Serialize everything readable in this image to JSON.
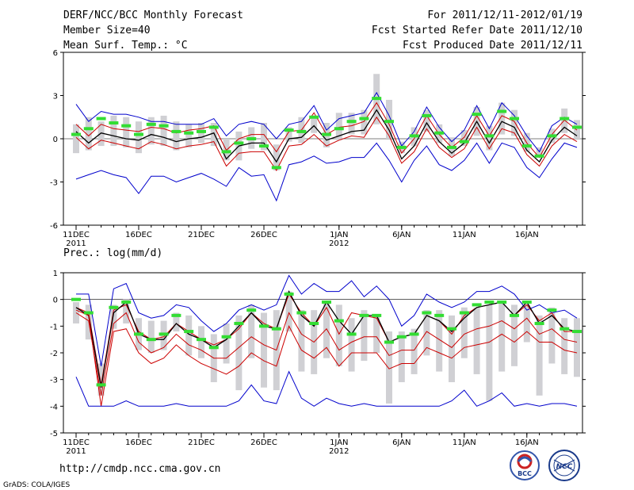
{
  "header": {
    "title": "DERF/NCC/BCC Monthly Forecast",
    "member_size": "Member Size=40",
    "variable": "Mean Surf. Temp.: °C",
    "period": "For 2011/12/11-2012/01/19",
    "started": "Fcst Started Refer Date 2011/12/10",
    "produced": "Fcst Produced Date 2011/12/11"
  },
  "footer": {
    "url": "http://cmdp.ncc.cma.gov.cn",
    "grads": "GrADS: COLA/IGES",
    "logo_bcc": "BCC",
    "logo_ncc": "NCC"
  },
  "colors": {
    "max_min": "#0000cc",
    "pctl": "#cc0000",
    "mean": "#000000",
    "obs": "#33dd33",
    "bars": "#d0d0d4"
  },
  "chart_data": [
    {
      "type": "line",
      "title": "Mean Surf. Temp.: °C",
      "xlabel": "",
      "ylabel": "°C",
      "ylim": [
        -6,
        6
      ],
      "yticks": [
        "6",
        "3",
        "0",
        "-3",
        "-6"
      ],
      "ytick_values": [
        6,
        3,
        0,
        -3,
        -6
      ],
      "xtick_labels": [
        "11DEC",
        "16DEC",
        "21DEC",
        "26DEC",
        "1JAN",
        "6JAN",
        "11JAN",
        "16JAN"
      ],
      "xtick_days": [
        1,
        6,
        11,
        16,
        22,
        27,
        32,
        37
      ],
      "xyear_labels": [
        "2011",
        "2012"
      ],
      "xyear_days": [
        1,
        22
      ],
      "series": [
        {
          "name": "max",
          "color": "#0000cc",
          "values": [
            2.4,
            1.2,
            1.9,
            1.7,
            1.7,
            1.5,
            1.2,
            1.2,
            1.0,
            1.0,
            1.0,
            1.4,
            0.2,
            1.0,
            1.2,
            1.0,
            0.0,
            1.0,
            1.2,
            2.3,
            0.6,
            1.4,
            1.6,
            1.8,
            3.2,
            1.6,
            -0.5,
            0.5,
            2.2,
            0.8,
            -0.2,
            0.6,
            2.3,
            0.7,
            2.5,
            1.6,
            0.2,
            -0.9,
            0.9,
            1.5,
            1.0
          ]
        },
        {
          "name": "p90",
          "color": "#cc0000",
          "values": [
            1.0,
            0.2,
            1.0,
            0.7,
            0.6,
            0.5,
            0.8,
            0.7,
            0.4,
            0.6,
            0.7,
            0.9,
            -0.8,
            0.0,
            0.3,
            0.3,
            -0.9,
            0.5,
            0.6,
            1.8,
            0.3,
            0.8,
            0.9,
            1.2,
            2.5,
            1.0,
            -1.0,
            0.0,
            1.6,
            0.3,
            -0.6,
            0.1,
            1.6,
            0.2,
            1.6,
            1.2,
            -0.3,
            -1.3,
            0.3,
            1.3,
            0.6
          ]
        },
        {
          "name": "mean",
          "color": "#000000",
          "values": [
            0.5,
            -0.3,
            0.4,
            0.2,
            0.0,
            -0.1,
            0.3,
            0.1,
            -0.2,
            0.0,
            0.1,
            0.4,
            -1.4,
            -0.5,
            -0.3,
            -0.3,
            -1.6,
            0.0,
            0.1,
            0.9,
            -0.1,
            0.2,
            0.5,
            0.6,
            2.0,
            0.6,
            -1.4,
            -0.5,
            1.1,
            -0.2,
            -1.0,
            -0.3,
            1.2,
            -0.3,
            1.2,
            0.8,
            -0.8,
            -1.6,
            -0.1,
            0.8,
            0.2
          ]
        },
        {
          "name": "p10",
          "color": "#cc0000",
          "values": [
            0.1,
            -0.7,
            -0.1,
            -0.3,
            -0.5,
            -0.7,
            -0.2,
            -0.4,
            -0.7,
            -0.5,
            -0.4,
            -0.2,
            -1.9,
            -1.0,
            -0.9,
            -0.9,
            -2.2,
            -0.5,
            -0.4,
            0.3,
            -0.5,
            -0.1,
            0.2,
            0.1,
            1.5,
            0.2,
            -1.7,
            -0.9,
            0.7,
            -0.6,
            -1.3,
            -0.7,
            0.8,
            -0.7,
            0.7,
            0.4,
            -1.1,
            -1.9,
            -0.5,
            0.3,
            -0.2
          ]
        },
        {
          "name": "min",
          "color": "#0000cc",
          "values": [
            -2.8,
            -2.5,
            -2.2,
            -2.5,
            -2.7,
            -3.8,
            -2.6,
            -2.6,
            -3.0,
            -2.7,
            -2.4,
            -2.8,
            -3.3,
            -2.0,
            -2.6,
            -2.5,
            -4.3,
            -1.8,
            -1.6,
            -1.2,
            -1.7,
            -1.6,
            -1.3,
            -1.3,
            -0.3,
            -1.5,
            -3.0,
            -1.5,
            -0.5,
            -1.8,
            -2.2,
            -1.5,
            -0.3,
            -1.7,
            -0.3,
            -0.6,
            -2.0,
            -2.7,
            -1.4,
            -0.3,
            -0.6
          ]
        }
      ],
      "observed": [
        0.3,
        0.7,
        1.4,
        1.1,
        0.9,
        0.3,
        1.0,
        0.9,
        0.5,
        0.4,
        0.5,
        0.8,
        -0.9,
        -0.3,
        0.0,
        -0.5,
        -2.0,
        0.6,
        0.5,
        1.5,
        0.3,
        0.7,
        1.2,
        1.4,
        2.8,
        1.2,
        -0.6,
        0.2,
        1.6,
        0.4,
        -0.6,
        -0.2,
        1.7,
        0.2,
        1.9,
        1.4,
        -0.5,
        -1.2,
        0.2,
        1.4,
        0.8
      ],
      "box_top": [
        1.0,
        1.5,
        1.2,
        1.6,
        1.5,
        1.2,
        1.5,
        1.6,
        1.2,
        1.0,
        1.1,
        1.1,
        0.0,
        0.5,
        0.8,
        1.1,
        -0.4,
        0.8,
        1.5,
        1.5,
        1.1,
        1.8,
        1.8,
        2.0,
        4.5,
        2.7,
        -0.2,
        0.8,
        2.0,
        1.0,
        0.1,
        0.6,
        2.2,
        0.9,
        2.5,
        2.0,
        0.4,
        -0.6,
        0.7,
        2.1,
        1.3
      ],
      "box_bottom": [
        -1.0,
        -0.8,
        -0.5,
        -0.5,
        -0.6,
        -1.0,
        -0.4,
        -0.5,
        -0.8,
        -0.6,
        -0.3,
        -0.5,
        -1.5,
        -1.5,
        -0.7,
        -0.8,
        -2.2,
        -0.2,
        -0.3,
        0.4,
        -0.6,
        -0.1,
        0.3,
        0.3,
        1.0,
        0.0,
        -1.0,
        -0.5,
        0.5,
        -0.3,
        -1.2,
        -0.5,
        0.2,
        -0.8,
        0.3,
        0.2,
        -0.9,
        -1.3,
        -0.3,
        0.4,
        0.0
      ]
    },
    {
      "type": "line",
      "title": "Prec.: log(mm/d)",
      "xlabel": "",
      "ylabel": "log(mm/d)",
      "ylim": [
        -5,
        1
      ],
      "yticks": [
        "1",
        "0",
        "-1",
        "-2",
        "-3",
        "-4",
        "-5"
      ],
      "ytick_values": [
        1,
        0,
        -1,
        -2,
        -3,
        -4,
        -5
      ],
      "xtick_labels": [
        "11DEC",
        "16DEC",
        "21DEC",
        "26DEC",
        "1JAN",
        "6JAN",
        "11JAN",
        "16JAN"
      ],
      "xtick_days": [
        1,
        6,
        11,
        16,
        22,
        27,
        32,
        37
      ],
      "xyear_labels": [
        "2011",
        "2012"
      ],
      "xyear_days": [
        1,
        22
      ],
      "series": [
        {
          "name": "max",
          "color": "#0000cc",
          "values": [
            0.2,
            0.2,
            -2.5,
            0.4,
            0.6,
            -0.5,
            -0.7,
            -0.6,
            -0.2,
            -0.3,
            -0.8,
            -1.2,
            -0.9,
            -0.4,
            -0.2,
            -0.4,
            -0.2,
            0.9,
            0.2,
            0.6,
            0.3,
            0.3,
            0.7,
            0.1,
            0.5,
            0.0,
            -1.0,
            -0.6,
            0.2,
            -0.1,
            -0.3,
            -0.1,
            0.3,
            0.3,
            0.5,
            0.2,
            -0.4,
            -0.2,
            -0.5,
            -0.4,
            -0.7
          ]
        },
        {
          "name": "p90",
          "color": "#cc0000",
          "values": [
            -0.3,
            -0.5,
            -3.2,
            -0.4,
            -0.2,
            -1.2,
            -1.5,
            -1.4,
            -0.9,
            -1.2,
            -1.5,
            -1.7,
            -1.5,
            -1.1,
            -0.5,
            -0.9,
            -1.1,
            0.2,
            -0.5,
            -1.0,
            -0.3,
            -1.3,
            -0.5,
            -0.6,
            -0.7,
            -1.6,
            -1.4,
            -1.3,
            -0.6,
            -0.8,
            -1.3,
            -0.6,
            -0.3,
            -0.2,
            -0.1,
            -0.6,
            -0.2,
            -0.8,
            -0.5,
            -1.2,
            -1.2
          ]
        },
        {
          "name": "mean",
          "color": "#000000",
          "values": [
            -0.3,
            -0.6,
            -3.3,
            -0.5,
            -0.1,
            -1.3,
            -1.5,
            -1.5,
            -0.9,
            -1.3,
            -1.5,
            -1.8,
            -1.5,
            -1.0,
            -0.5,
            -1.0,
            -1.1,
            0.3,
            -0.6,
            -1.0,
            -0.1,
            -0.8,
            -1.3,
            -0.6,
            -0.6,
            -1.6,
            -1.4,
            -1.3,
            -0.6,
            -0.8,
            -1.2,
            -0.7,
            -0.3,
            -0.2,
            -0.1,
            -0.6,
            -0.1,
            -0.9,
            -0.6,
            -1.1,
            -1.2
          ]
        },
        {
          "name": "p10",
          "color": "#cc0000",
          "values": [
            -0.4,
            -0.6,
            -4.0,
            -1.2,
            -1.1,
            -2.0,
            -2.4,
            -2.2,
            -1.7,
            -2.1,
            -2.4,
            -2.6,
            -2.8,
            -2.5,
            -2.0,
            -2.3,
            -2.5,
            -1.0,
            -1.9,
            -2.2,
            -1.8,
            -2.5,
            -2.0,
            -2.0,
            -2.0,
            -2.6,
            -2.4,
            -2.4,
            -1.8,
            -2.0,
            -2.2,
            -1.8,
            -1.7,
            -1.6,
            -1.3,
            -1.6,
            -1.2,
            -1.6,
            -1.6,
            -1.9,
            -2.0
          ]
        },
        {
          "name": "min",
          "color": "#0000cc",
          "values": [
            -2.9,
            -4.0,
            -4.0,
            -4.0,
            -3.8,
            -4.0,
            -4.0,
            -4.0,
            -3.9,
            -4.0,
            -4.0,
            -4.0,
            -4.0,
            -3.8,
            -3.2,
            -3.8,
            -3.9,
            -2.7,
            -3.7,
            -4.0,
            -3.7,
            -3.9,
            -4.0,
            -3.9,
            -4.0,
            -4.0,
            -4.0,
            -4.0,
            -4.0,
            -4.0,
            -3.8,
            -3.4,
            -4.0,
            -3.8,
            -3.5,
            -4.0,
            -3.9,
            -4.0,
            -3.9,
            -3.9,
            -4.0
          ]
        },
        {
          "name": "p25",
          "color": "#cc0000",
          "values": [
            -0.5,
            -0.8,
            -3.6,
            -0.9,
            -0.5,
            -1.6,
            -2.0,
            -1.8,
            -1.3,
            -1.7,
            -1.9,
            -2.2,
            -2.2,
            -1.8,
            -1.4,
            -1.7,
            -1.9,
            -0.5,
            -1.3,
            -1.6,
            -1.1,
            -1.9,
            -1.6,
            -1.4,
            -1.4,
            -2.1,
            -1.9,
            -1.9,
            -1.2,
            -1.5,
            -1.8,
            -1.3,
            -1.1,
            -1.0,
            -0.8,
            -1.1,
            -0.7,
            -1.3,
            -1.1,
            -1.5,
            -1.6
          ]
        }
      ],
      "observed": [
        0.0,
        -0.5,
        -3.2,
        -0.3,
        -0.1,
        -1.3,
        -1.5,
        -1.3,
        -0.6,
        -1.2,
        -1.5,
        -1.8,
        -1.4,
        -0.9,
        -0.4,
        -1.0,
        -1.1,
        0.2,
        -0.5,
        -0.9,
        -0.1,
        -0.8,
        -1.3,
        -0.6,
        -0.6,
        -1.6,
        -1.4,
        -1.3,
        -0.5,
        -0.6,
        -1.1,
        -0.5,
        -0.2,
        -0.1,
        -0.1,
        -0.6,
        -0.1,
        -0.9,
        -0.4,
        -1.1,
        -1.2
      ],
      "box_top": [
        -0.1,
        -0.2,
        -2.4,
        -0.2,
        0.0,
        -0.7,
        -0.8,
        -0.8,
        -0.5,
        -0.6,
        -1.0,
        -1.3,
        -0.9,
        -0.6,
        -0.2,
        -0.5,
        -0.4,
        0.3,
        -0.4,
        -0.4,
        -0.1,
        -0.2,
        -0.7,
        -0.4,
        -0.6,
        -1.2,
        -1.2,
        -1.1,
        -0.4,
        -0.4,
        -0.6,
        -0.3,
        -0.3,
        -0.2,
        -0.1,
        -0.2,
        -0.2,
        -0.6,
        -0.3,
        -0.7,
        -0.7
      ],
      "box_bottom": [
        -0.9,
        -1.5,
        -3.6,
        -1.1,
        -0.9,
        -1.9,
        -2.0,
        -1.9,
        -1.2,
        -2.1,
        -2.2,
        -3.1,
        -2.4,
        -3.4,
        -2.2,
        -3.3,
        -3.4,
        -1.2,
        -2.7,
        -2.8,
        -2.2,
        -2.5,
        -2.7,
        -2.3,
        -2.0,
        -3.9,
        -3.1,
        -2.8,
        -2.1,
        -2.7,
        -3.1,
        -2.2,
        -2.8,
        -3.8,
        -2.7,
        -2.5,
        -1.6,
        -3.6,
        -2.4,
        -2.8,
        -2.9
      ]
    }
  ]
}
